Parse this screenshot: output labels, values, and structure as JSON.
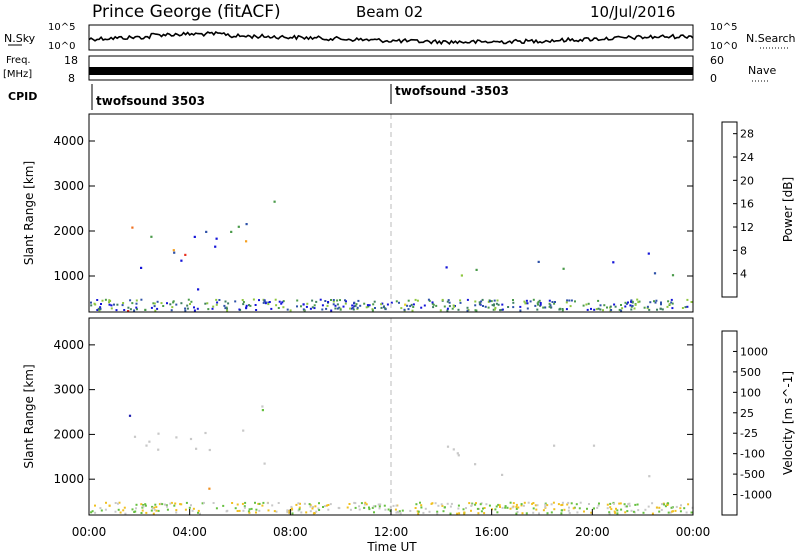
{
  "header": {
    "site": "Prince George (fitACF)",
    "beam": "Beam 02",
    "date": "10/Jul/2016"
  },
  "noise_panel": {
    "left_label": "N.Sky",
    "right_label": "N.Search",
    "y_ticks": [
      "10^5",
      "10^0"
    ]
  },
  "freq_panel": {
    "left_label_top": "Freq.",
    "left_label_unit": "[MHz]",
    "right_label": "Nave",
    "left_ticks": [
      "18",
      "8"
    ],
    "right_ticks": [
      "60",
      "0"
    ]
  },
  "cpid": {
    "label": "CPID",
    "entries": [
      {
        "name": "twofsound 3503"
      },
      {
        "name": "twofsound -3503"
      }
    ]
  },
  "chart_data": [
    {
      "type": "heatmap",
      "title": "",
      "ylabel": "Slant Range [km]",
      "xlabel": "",
      "y_ticks": [
        "1000",
        "2000",
        "3000",
        "4000"
      ],
      "ylim": [
        200,
        4600
      ],
      "xlim": [
        0,
        24
      ],
      "colorbar": {
        "label": "Power [dB]",
        "ticks": [
          "4",
          "8",
          "12",
          "16",
          "20",
          "24",
          "28"
        ],
        "range": [
          0,
          30
        ],
        "colors": [
          "#1414d8",
          "#2e52a8",
          "#3f7f60",
          "#4a9a4a",
          "#8ec63f",
          "#e8d020",
          "#f5a020",
          "#f07020",
          "#e83020",
          "#d81010"
        ]
      },
      "regions": [
        {
          "name": "upper arc",
          "x": [
            1.5,
            8.5
          ],
          "y": [
            1700,
            3500
          ]
        },
        {
          "name": "mid band west",
          "x": [
            0.5,
            6.0
          ],
          "y": [
            1100,
            1500
          ]
        },
        {
          "name": "low patch",
          "x": [
            3.8,
            6.5
          ],
          "y": [
            700,
            950
          ]
        },
        {
          "name": "evening band",
          "x": [
            14.0,
            24.0
          ],
          "y": [
            1000,
            1800
          ]
        },
        {
          "name": "near range",
          "x": [
            0,
            24
          ],
          "y": [
            200,
            400
          ]
        }
      ]
    },
    {
      "type": "heatmap",
      "title": "",
      "ylabel": "Slant Range [km]",
      "xlabel": "Time UT",
      "x_ticks": [
        "00:00",
        "04:00",
        "08:00",
        "12:00",
        "16:00",
        "20:00",
        "00:00"
      ],
      "y_ticks": [
        "1000",
        "2000",
        "3000",
        "4000"
      ],
      "ylim": [
        200,
        4600
      ],
      "xlim": [
        0,
        24
      ],
      "colorbar": {
        "label": "Velocity [m s^-1]",
        "ticks": [
          "1000",
          "500",
          "100",
          "25",
          "-25",
          "-100",
          "-500",
          "-1000"
        ],
        "colors": [
          "#2020b0",
          "#3a66b0",
          "#3a8a3a",
          "#66c040",
          "#c8c8c8",
          "#f0c020",
          "#f09020",
          "#f05020",
          "#e01010"
        ]
      },
      "regions": [
        {
          "name": "grey arc",
          "x": [
            1.5,
            8.5
          ],
          "y": [
            1700,
            3500
          ]
        },
        {
          "name": "colored band",
          "x": [
            5.0,
            7.0
          ],
          "y": [
            1000,
            1500
          ]
        },
        {
          "name": "orange patch",
          "x": [
            3.8,
            6.5
          ],
          "y": [
            700,
            950
          ]
        },
        {
          "name": "grey evening band",
          "x": [
            14.0,
            24.0
          ],
          "y": [
            1000,
            1800
          ]
        }
      ]
    }
  ]
}
